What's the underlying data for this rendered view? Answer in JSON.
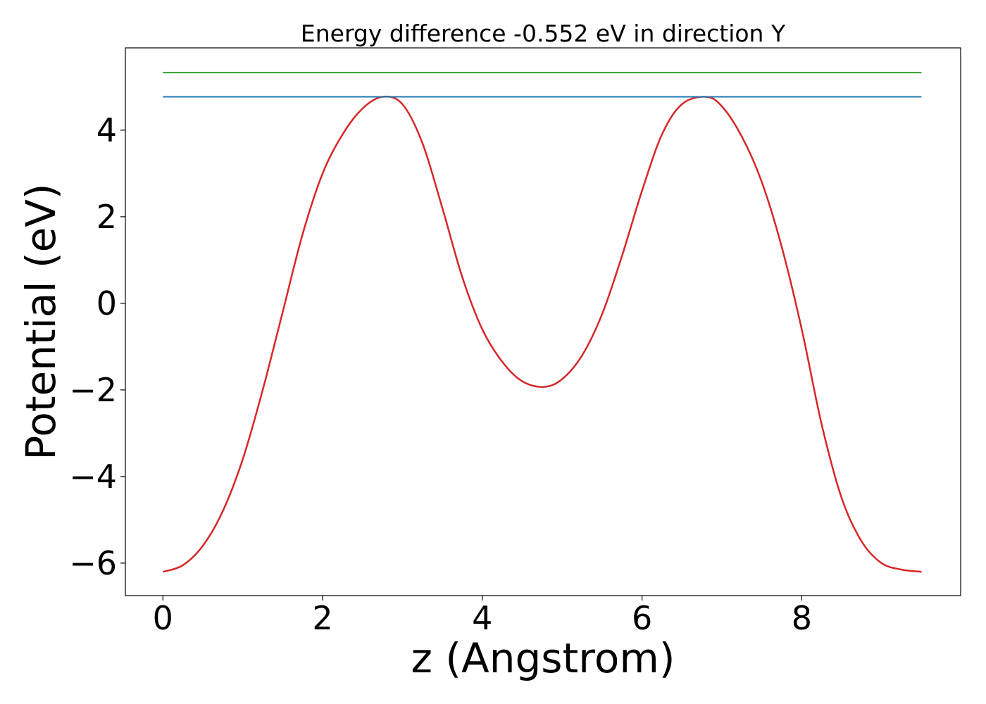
{
  "chart_data": {
    "type": "line",
    "title": "Energy difference -0.552 eV in direction Y",
    "xlabel": "z (Angstrom)",
    "ylabel": "Potential (eV)",
    "xlim": [
      -0.47,
      9.99
    ],
    "ylim": [
      -6.75,
      5.9
    ],
    "x_ticks": [
      0,
      2,
      4,
      6,
      8
    ],
    "x_tick_labels": [
      "0",
      "2",
      "4",
      "6",
      "8"
    ],
    "y_ticks": [
      -6,
      -4,
      -2,
      0,
      2,
      4
    ],
    "y_tick_labels": [
      "−6",
      "−4",
      "−2",
      "0",
      "2",
      "4"
    ],
    "grid": false,
    "legend": "none",
    "series": [
      {
        "color": "#d62728",
        "x": [
          0,
          0.25,
          0.5,
          0.75,
          1.0,
          1.25,
          1.5,
          1.75,
          2.0,
          2.25,
          2.5,
          2.75,
          3.0,
          3.25,
          3.5,
          3.75,
          4.0,
          4.25,
          4.5,
          4.77,
          5.0,
          5.25,
          5.5,
          5.75,
          6.0,
          6.25,
          6.5,
          6.8,
          7.0,
          7.25,
          7.5,
          7.75,
          8.0,
          8.25,
          8.5,
          8.75,
          9.0,
          9.25,
          9.5
        ],
        "y": [
          -6.2,
          -6.05,
          -5.6,
          -4.8,
          -3.6,
          -2.0,
          -0.2,
          1.6,
          3.0,
          3.9,
          4.5,
          4.77,
          4.6,
          3.7,
          2.2,
          0.6,
          -0.6,
          -1.35,
          -1.8,
          -1.93,
          -1.75,
          -1.2,
          -0.25,
          1.1,
          2.6,
          3.9,
          4.6,
          4.77,
          4.55,
          3.85,
          2.8,
          1.3,
          -0.6,
          -2.8,
          -4.5,
          -5.5,
          -6.0,
          -6.15,
          -6.2
        ]
      },
      {
        "color": "#2ca02c",
        "x": [
          0,
          9.5
        ],
        "y": [
          5.33,
          5.33
        ]
      },
      {
        "color": "#1f77b4",
        "x": [
          0,
          9.5
        ],
        "y": [
          4.77,
          4.77
        ]
      }
    ]
  }
}
